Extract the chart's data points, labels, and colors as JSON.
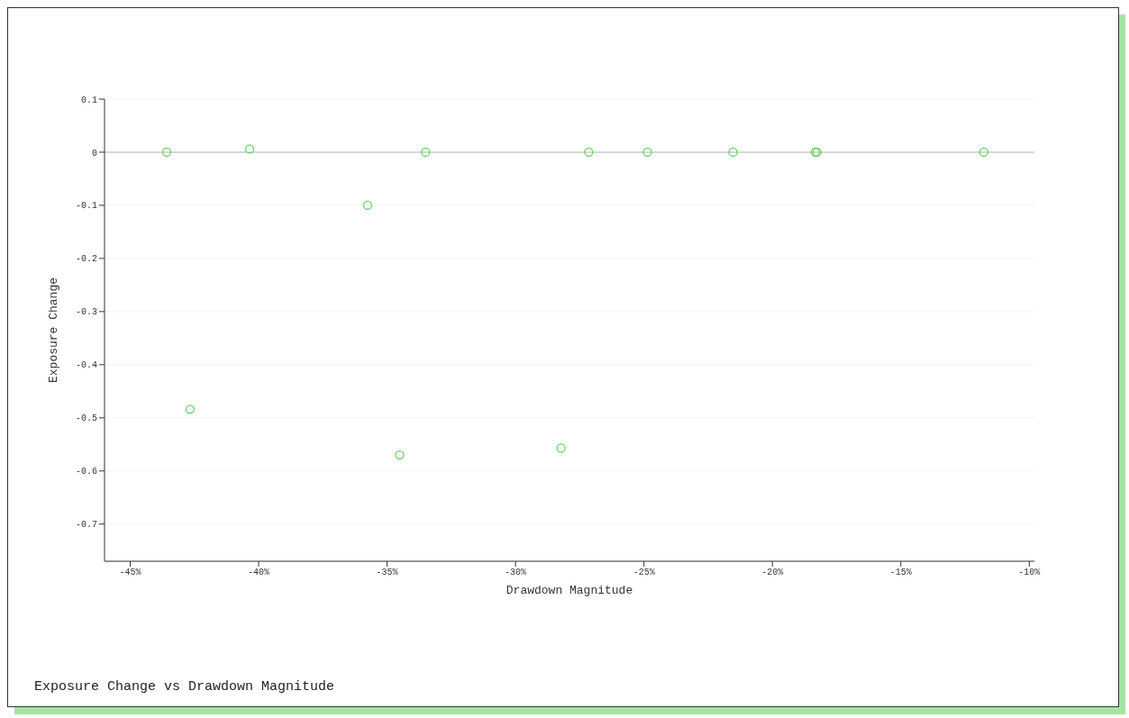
{
  "chart_data": {
    "type": "scatter",
    "xlabel": "Drawdown Magnitude",
    "ylabel": "Exposure Change",
    "annotations": [
      "Exposure Change vs Drawdown Magnitude"
    ],
    "series": [
      {
        "color": "#5fd35f",
        "x": [
          -43.58,
          -40.35,
          -35.76,
          -33.5,
          -42.67,
          -34.51,
          -28.23,
          -27.15,
          -24.86,
          -21.53,
          -18.33,
          -18.26,
          -11.77
        ],
        "values": [
          0,
          0.006,
          -0.1,
          0,
          -0.484,
          -0.57,
          -0.557,
          0,
          0,
          0,
          0,
          0,
          0
        ]
      }
    ],
    "xlim": [
      -46,
      -9.8
    ],
    "xticks": [
      {
        "value": -45,
        "label": "-45%"
      },
      {
        "value": -40,
        "label": "-40%"
      },
      {
        "value": -35,
        "label": "-35%"
      },
      {
        "value": -30,
        "label": "-30%"
      },
      {
        "value": -25,
        "label": "-25%"
      },
      {
        "value": -20,
        "label": "-20%"
      },
      {
        "value": -15,
        "label": "-15%"
      },
      {
        "value": -10,
        "label": "-10%"
      }
    ],
    "ylim": [
      -0.77,
      0.1
    ],
    "yticks": [
      0.1,
      0,
      -0.1,
      -0.2,
      -0.3,
      -0.4,
      -0.5,
      -0.6,
      -0.7
    ],
    "ref_lines": [
      {
        "axis": "y",
        "value": 0,
        "color": "#cccccc"
      }
    ],
    "grid": "y",
    "marker": "circle",
    "legend": false
  }
}
